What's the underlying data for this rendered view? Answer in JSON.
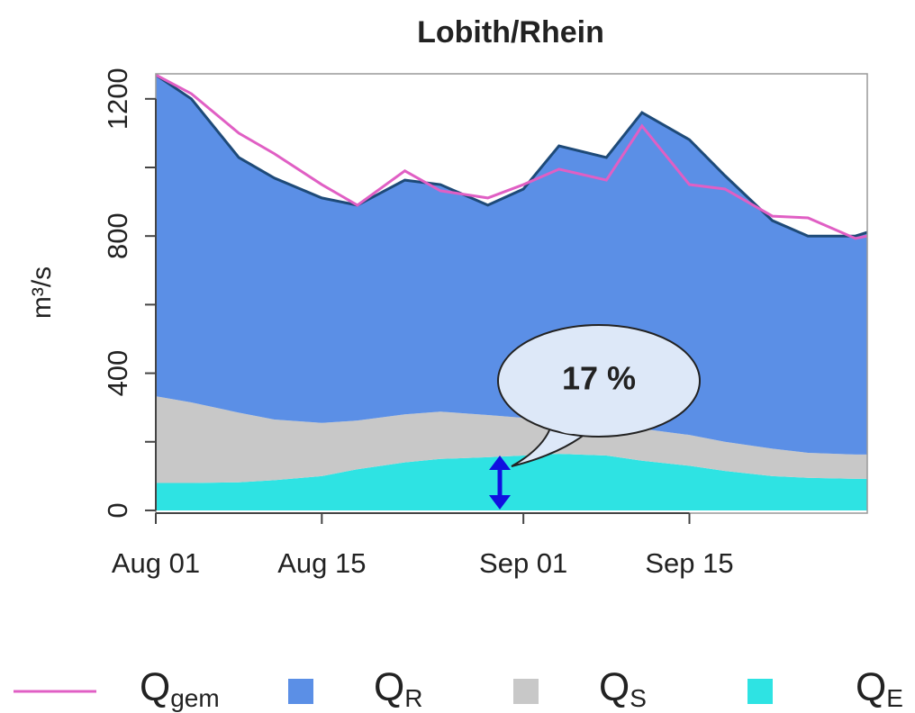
{
  "chart_data": {
    "type": "stacked-area-line",
    "title": "Lobith/Rhein",
    "y_label": "m³/s",
    "x": [
      "Aug 01",
      "Aug 04",
      "Aug 08",
      "Aug 11",
      "Aug 15",
      "Aug 18",
      "Aug 22",
      "Aug 25",
      "Aug 29",
      "Sep 01",
      "Sep 04",
      "Sep 08",
      "Sep 11",
      "Sep 15",
      "Sep 18",
      "Sep 22",
      "Sep 25",
      "Sep 29",
      "Sep 30"
    ],
    "xlim": [
      "Aug 01",
      "Sep 30"
    ],
    "xticks": [
      "Aug 01",
      "Aug 15",
      "Sep 01",
      "Sep 15"
    ],
    "ylim": [
      -8,
      1273
    ],
    "yticks": [
      0,
      400,
      800,
      1200
    ],
    "y_minor_ticks": [
      200,
      600,
      1000
    ],
    "series": [
      {
        "name": "Q",
        "subscript": "E",
        "kind": "area",
        "color": "#2ee3e3",
        "values": [
          80,
          80,
          82,
          88,
          100,
          120,
          140,
          150,
          155,
          160,
          165,
          160,
          145,
          130,
          115,
          100,
          95,
          92,
          92
        ]
      },
      {
        "name": "Q",
        "subscript": "S",
        "kind": "area",
        "color": "#c8c8c8",
        "values": [
          253,
          235,
          203,
          177,
          155,
          142,
          140,
          138,
          123,
          110,
          101,
          95,
          93,
          90,
          85,
          80,
          73,
          71,
          71
        ]
      },
      {
        "name": "Q",
        "subscript": "R",
        "kind": "area",
        "color": "#5b8fe6",
        "outline": "#1e4a78",
        "values": [
          937,
          885,
          744,
          704,
          656,
          628,
          683,
          662,
          612,
          667,
          797,
          774,
          922,
          861,
          776,
          665,
          632,
          637,
          648
        ]
      },
      {
        "name": "Q",
        "subscript": "gem",
        "kind": "line",
        "color": "#e05fc4",
        "values": [
          1270,
          1215,
          1100,
          1040,
          950,
          890,
          990,
          932,
          911,
          950,
          995,
          963,
          1121,
          950,
          937,
          858,
          853,
          793,
          800
        ]
      }
    ],
    "legend_order": [
      3,
      2,
      1,
      0
    ],
    "annotations": [
      {
        "text": "17 %"
      }
    ]
  }
}
